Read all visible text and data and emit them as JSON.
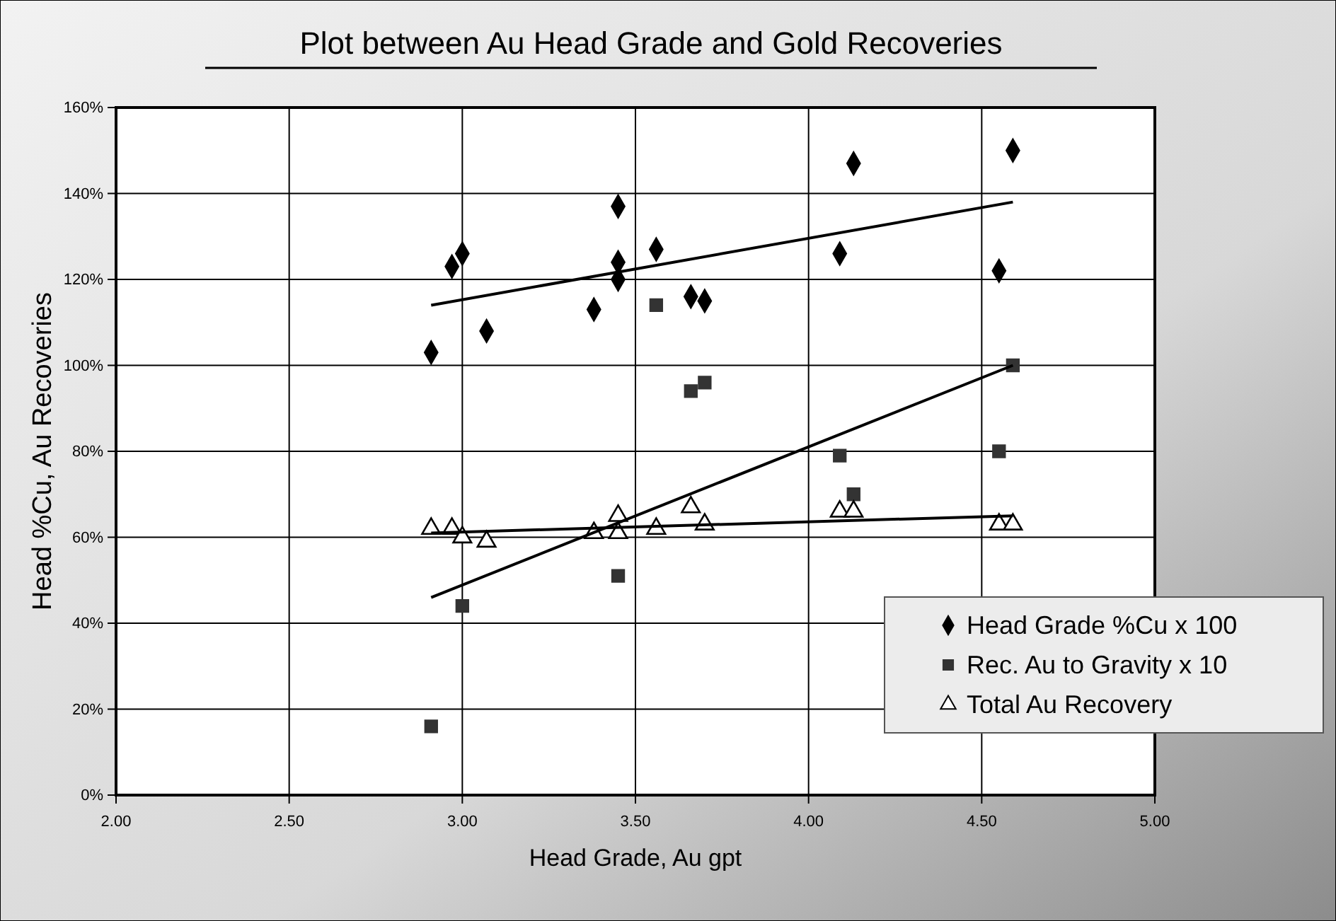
{
  "chart_data": {
    "type": "scatter",
    "title": "Plot between Au Head Grade and Gold Recoveries",
    "xlabel": "Head Grade, Au gpt",
    "ylabel": "Head %Cu, Au Recoveries",
    "xlim": [
      2,
      5
    ],
    "xticks": [
      {
        "value": 2,
        "label": "2.00"
      },
      {
        "value": 2.5,
        "label": "2.50"
      },
      {
        "value": 3,
        "label": "3.00"
      },
      {
        "value": 3.5,
        "label": "3.50"
      },
      {
        "value": 4,
        "label": "4.00"
      },
      {
        "value": 4.5,
        "label": "4.50"
      },
      {
        "value": 5,
        "label": "5.00"
      }
    ],
    "ylim": [
      0,
      160
    ],
    "yticks": [
      {
        "value": 0,
        "label": "0%"
      },
      {
        "value": 20,
        "label": "20%"
      },
      {
        "value": 40,
        "label": "40%"
      },
      {
        "value": 60,
        "label": "60%"
      },
      {
        "value": 80,
        "label": "80%"
      },
      {
        "value": 100,
        "label": "100%"
      },
      {
        "value": 120,
        "label": "120%"
      },
      {
        "value": 140,
        "label": "140%"
      },
      {
        "value": 160,
        "label": "160%"
      }
    ],
    "grid": true,
    "legend": "bottom right",
    "series": [
      {
        "name": "Head Grade %Cu x 100",
        "marker": "diamond",
        "color": "#000000",
        "x": [
          2.91,
          2.97,
          3.0,
          3.07,
          3.38,
          3.45,
          3.45,
          3.45,
          3.56,
          3.66,
          3.7,
          4.13,
          4.09,
          4.59,
          4.55
        ],
        "values": [
          103,
          123,
          126,
          108,
          113,
          137,
          124,
          120,
          127,
          116,
          115,
          147,
          126,
          150,
          122
        ]
      },
      {
        "name": "Rec. Au to Gravity x 10",
        "marker": "square",
        "color": "#333333",
        "x": [
          3.56,
          3.66,
          3.7,
          4.59,
          4.09,
          4.55,
          4.13,
          3.45,
          3.0,
          2.91
        ],
        "values": [
          114,
          94,
          96,
          100,
          79,
          80,
          70,
          51,
          44,
          16
        ]
      },
      {
        "name": "Total Au Recovery",
        "marker": "triangle",
        "color": "#000000",
        "x": [
          2.91,
          2.97,
          3.0,
          3.07,
          3.38,
          3.45,
          3.45,
          3.56,
          3.66,
          3.7,
          4.09,
          4.13,
          4.55,
          4.59
        ],
        "values": [
          62,
          62,
          60,
          59,
          61,
          65,
          61,
          62,
          67,
          63,
          66,
          66,
          63,
          63
        ]
      },
      {
        "type": "line",
        "color": "#000000",
        "x": [
          2.91,
          4.59
        ],
        "values": [
          114,
          138
        ]
      },
      {
        "type": "line",
        "color": "#000000",
        "x": [
          2.91,
          4.59
        ],
        "values": [
          46,
          100
        ]
      },
      {
        "type": "line",
        "color": "#000000",
        "x": [
          2.91,
          4.59
        ],
        "values": [
          61,
          65
        ]
      }
    ]
  }
}
